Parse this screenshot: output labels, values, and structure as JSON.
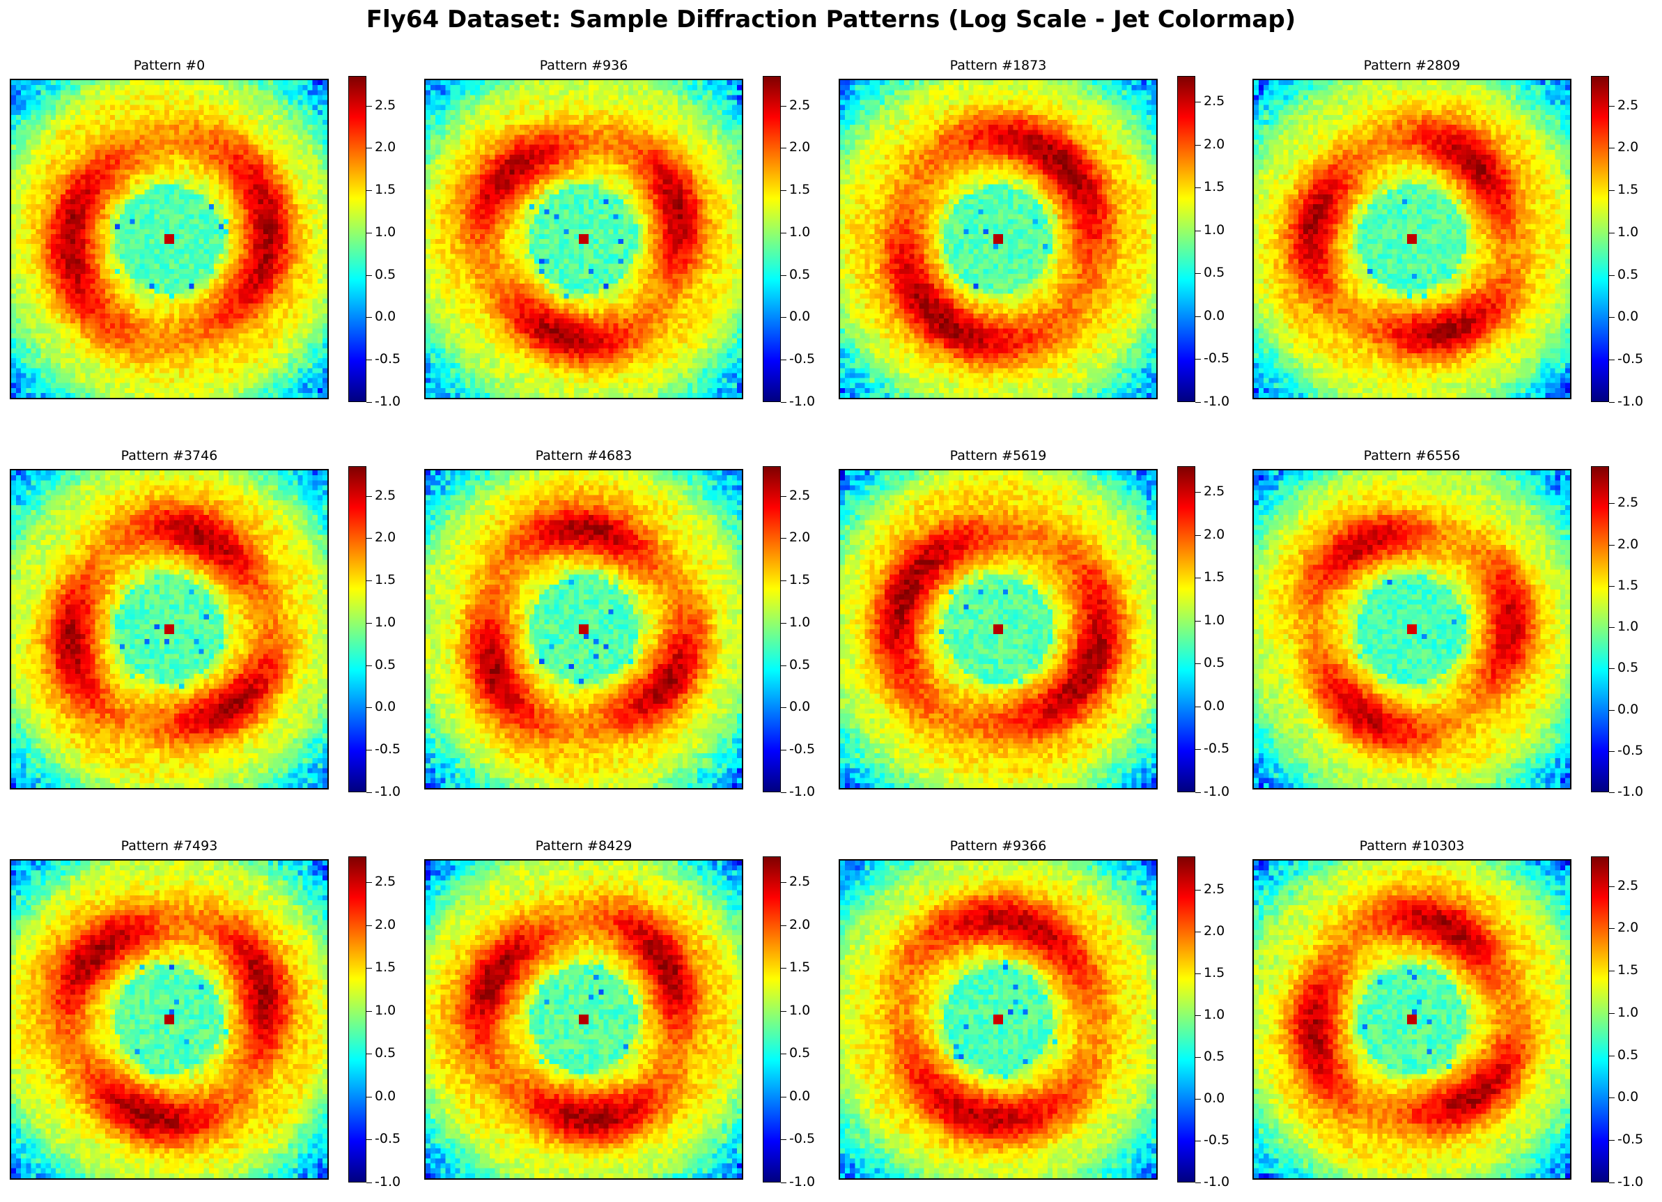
{
  "title": "Fly64 Dataset: Sample Diffraction Patterns (Log Scale - Jet Colormap)",
  "chart_data": {
    "type": "heatmap",
    "colormap": "jet",
    "scale": "log",
    "grid": false,
    "colorbar_ticks": [
      "-1.0",
      "-0.5",
      "0.0",
      "0.5",
      "1.0",
      "1.5",
      "2.0",
      "2.5"
    ],
    "panels": [
      {
        "title": "Pattern #0",
        "vmin": -1.0,
        "vmax": 2.85
      },
      {
        "title": "Pattern #936",
        "vmin": -1.0,
        "vmax": 2.85
      },
      {
        "title": "Pattern #1873",
        "vmin": -1.0,
        "vmax": 2.8
      },
      {
        "title": "Pattern #2809",
        "vmin": -1.0,
        "vmax": 2.85
      },
      {
        "title": "Pattern #3746",
        "vmin": -1.0,
        "vmax": 2.85
      },
      {
        "title": "Pattern #4683",
        "vmin": -1.0,
        "vmax": 2.85
      },
      {
        "title": "Pattern #5619",
        "vmin": -1.0,
        "vmax": 2.8
      },
      {
        "title": "Pattern #6556",
        "vmin": -1.0,
        "vmax": 2.95
      },
      {
        "title": "Pattern #7493",
        "vmin": -1.0,
        "vmax": 2.8
      },
      {
        "title": "Pattern #8429",
        "vmin": -1.0,
        "vmax": 2.8
      },
      {
        "title": "Pattern #9366",
        "vmin": -1.0,
        "vmax": 2.9
      },
      {
        "title": "Pattern #10303",
        "vmin": -1.0,
        "vmax": 2.85
      }
    ]
  }
}
